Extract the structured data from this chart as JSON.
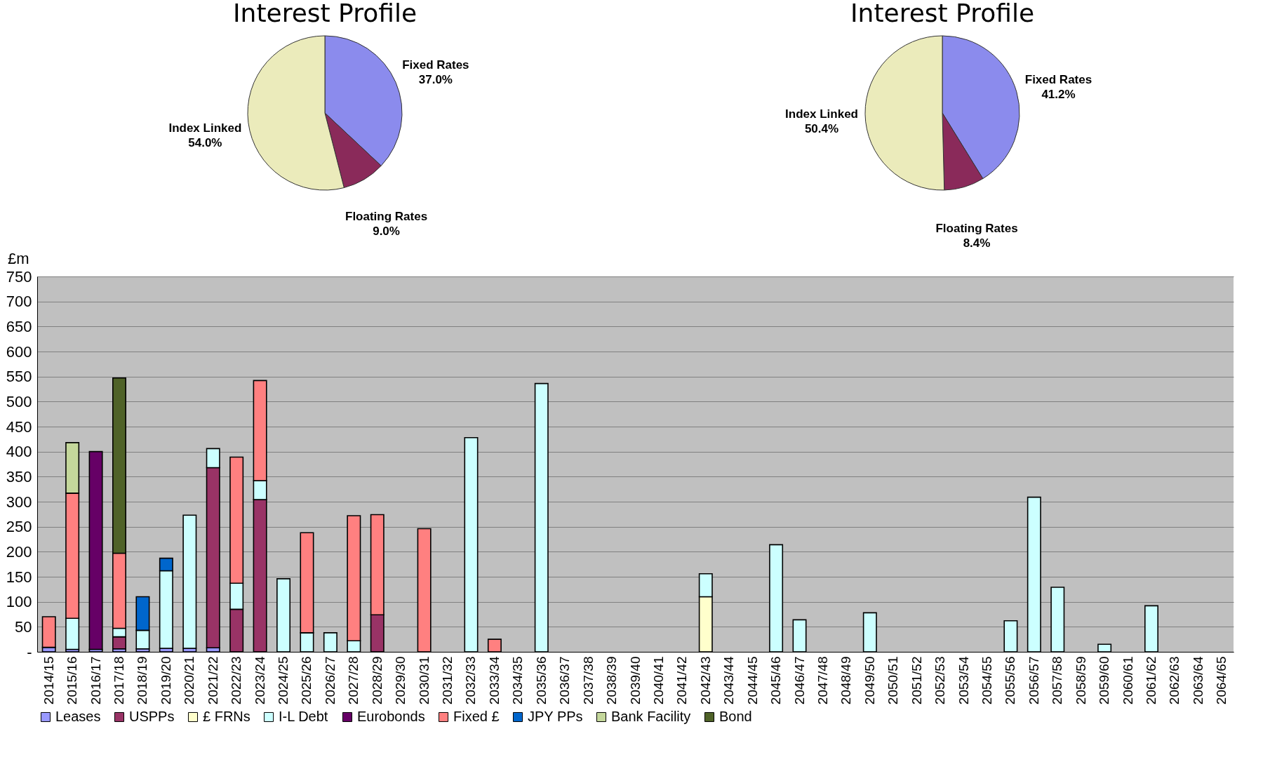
{
  "chart_data": [
    {
      "type": "pie",
      "title": "Interest Profile",
      "categories": [
        "Fixed Rates",
        "Floating Rates",
        "Index Linked"
      ],
      "values": [
        37.0,
        9.0,
        54.0
      ],
      "value_labels": [
        "37.0%",
        "9.0%",
        "54.0%"
      ],
      "colors": [
        "#8b8bed",
        "#8a2a5a",
        "#ebebbb"
      ]
    },
    {
      "type": "pie",
      "title": "Interest Profile",
      "categories": [
        "Fixed Rates",
        "Floating Rates",
        "Index Linked"
      ],
      "values": [
        41.2,
        8.4,
        50.4
      ],
      "value_labels": [
        "41.2%",
        "8.4%",
        "50.4%"
      ],
      "colors": [
        "#8b8bed",
        "#8a2a5a",
        "#ebebbb"
      ]
    },
    {
      "type": "bar",
      "stacked": true,
      "ylabel": "£m",
      "ylim": [
        0,
        750
      ],
      "yticks": [
        {
          "value": 0,
          "label": "-"
        },
        50,
        100,
        150,
        200,
        250,
        300,
        350,
        400,
        450,
        500,
        550,
        600,
        650,
        700,
        750
      ],
      "grid": "y",
      "legend": "bottom",
      "categories": [
        "2014/15",
        "2015/16",
        "2016/17",
        "2017/18",
        "2018/19",
        "2019/20",
        "2020/21",
        "2021/22",
        "2022/23",
        "2023/24",
        "2024/25",
        "2025/26",
        "2026/27",
        "2027/28",
        "2028/29",
        "2029/30",
        "2030/31",
        "2031/32",
        "2032/33",
        "2033/34",
        "2034/35",
        "2035/36",
        "2036/37",
        "2037/38",
        "2038/39",
        "2039/40",
        "2040/41",
        "2041/42",
        "2042/43",
        "2043/44",
        "2044/45",
        "2045/46",
        "2046/47",
        "2047/48",
        "2048/49",
        "2049/50",
        "2050/51",
        "2051/52",
        "2052/53",
        "2053/54",
        "2054/55",
        "2055/56",
        "2056/57",
        "2057/58",
        "2058/59",
        "2059/60",
        "2060/61",
        "2061/62",
        "2062/63",
        "2063/64",
        "2064/65"
      ],
      "series": [
        {
          "name": "Leases",
          "color": "#9999ff",
          "values": [
            9,
            5,
            5,
            6,
            6,
            7,
            7,
            8,
            null,
            null,
            null,
            null,
            null,
            null,
            null,
            null,
            null,
            null,
            null,
            null,
            null,
            null,
            null,
            null,
            null,
            null,
            null,
            null,
            null,
            null,
            null,
            null,
            null,
            null,
            null,
            null,
            null,
            null,
            null,
            null,
            null,
            null,
            null,
            null,
            null,
            null,
            null,
            null,
            null,
            null,
            null
          ]
        },
        {
          "name": "USPPs",
          "color": "#993366",
          "values": [
            null,
            null,
            null,
            24,
            null,
            null,
            null,
            360,
            85,
            304,
            null,
            null,
            null,
            null,
            74,
            null,
            null,
            null,
            null,
            null,
            null,
            null,
            null,
            null,
            null,
            null,
            null,
            null,
            null,
            null,
            null,
            null,
            null,
            null,
            null,
            null,
            null,
            null,
            null,
            null,
            null,
            null,
            null,
            null,
            null,
            null,
            null,
            null,
            null,
            null,
            null
          ]
        },
        {
          "name": "£ FRNs",
          "color": "#ffffcc",
          "values": [
            null,
            null,
            null,
            null,
            null,
            null,
            null,
            null,
            null,
            null,
            null,
            null,
            null,
            null,
            null,
            null,
            null,
            null,
            null,
            null,
            null,
            null,
            null,
            null,
            null,
            null,
            null,
            null,
            110,
            null,
            null,
            null,
            null,
            null,
            null,
            null,
            null,
            null,
            null,
            null,
            null,
            null,
            null,
            null,
            null,
            null,
            null,
            null,
            null,
            null,
            null
          ]
        },
        {
          "name": "I-L Debt",
          "color": "#ccffff",
          "values": [
            null,
            62,
            null,
            17,
            37,
            155,
            266,
            38,
            52,
            38,
            146,
            38,
            38,
            22,
            null,
            null,
            null,
            null,
            428,
            null,
            null,
            536,
            null,
            null,
            null,
            null,
            null,
            null,
            46,
            null,
            null,
            214,
            64,
            null,
            null,
            78,
            null,
            null,
            null,
            null,
            null,
            62,
            309,
            129,
            null,
            15,
            null,
            92,
            null,
            null,
            null
          ]
        },
        {
          "name": "Eurobonds",
          "color": "#660066",
          "values": [
            null,
            null,
            395,
            null,
            null,
            null,
            null,
            null,
            null,
            null,
            null,
            null,
            null,
            null,
            null,
            null,
            null,
            null,
            null,
            null,
            null,
            null,
            null,
            null,
            null,
            null,
            null,
            null,
            null,
            null,
            null,
            null,
            null,
            null,
            null,
            null,
            null,
            null,
            null,
            null,
            null,
            null,
            null,
            null,
            null,
            null,
            null,
            null,
            null,
            null,
            null
          ]
        },
        {
          "name": "Fixed £",
          "color": "#ff8080",
          "values": [
            61,
            250,
            null,
            150,
            null,
            null,
            null,
            null,
            252,
            200,
            null,
            200,
            null,
            250,
            200,
            null,
            246,
            null,
            null,
            25,
            null,
            null,
            null,
            null,
            null,
            null,
            null,
            null,
            null,
            null,
            null,
            null,
            null,
            null,
            null,
            null,
            null,
            null,
            null,
            null,
            null,
            null,
            null,
            null,
            null,
            null,
            null,
            null,
            null,
            null,
            null
          ]
        },
        {
          "name": "JPY PPs",
          "color": "#0066cc",
          "values": [
            null,
            null,
            null,
            null,
            67,
            25,
            null,
            null,
            null,
            null,
            null,
            null,
            null,
            null,
            null,
            null,
            null,
            null,
            null,
            null,
            null,
            null,
            null,
            null,
            null,
            null,
            null,
            null,
            null,
            null,
            null,
            null,
            null,
            null,
            null,
            null,
            null,
            null,
            null,
            null,
            null,
            null,
            null,
            null,
            null,
            null,
            null,
            null,
            null,
            null,
            null
          ]
        },
        {
          "name": "Bank Facility",
          "color": "#c4d79b",
          "values": [
            null,
            101,
            null,
            null,
            null,
            null,
            null,
            null,
            null,
            null,
            null,
            null,
            null,
            null,
            null,
            null,
            null,
            null,
            null,
            null,
            null,
            null,
            null,
            null,
            null,
            null,
            null,
            null,
            null,
            null,
            null,
            null,
            null,
            null,
            null,
            null,
            null,
            null,
            null,
            null,
            null,
            null,
            null,
            null,
            null,
            null,
            null,
            null,
            null,
            null,
            null
          ]
        },
        {
          "name": "Bond",
          "color": "#4f6228",
          "values": [
            null,
            null,
            null,
            350,
            null,
            null,
            null,
            null,
            null,
            null,
            null,
            null,
            null,
            null,
            null,
            null,
            null,
            null,
            null,
            null,
            null,
            null,
            null,
            null,
            null,
            null,
            null,
            null,
            null,
            null,
            null,
            null,
            null,
            null,
            null,
            null,
            null,
            null,
            null,
            null,
            null,
            null,
            null,
            null,
            null,
            null,
            null,
            null,
            null,
            null,
            null
          ]
        }
      ]
    }
  ]
}
